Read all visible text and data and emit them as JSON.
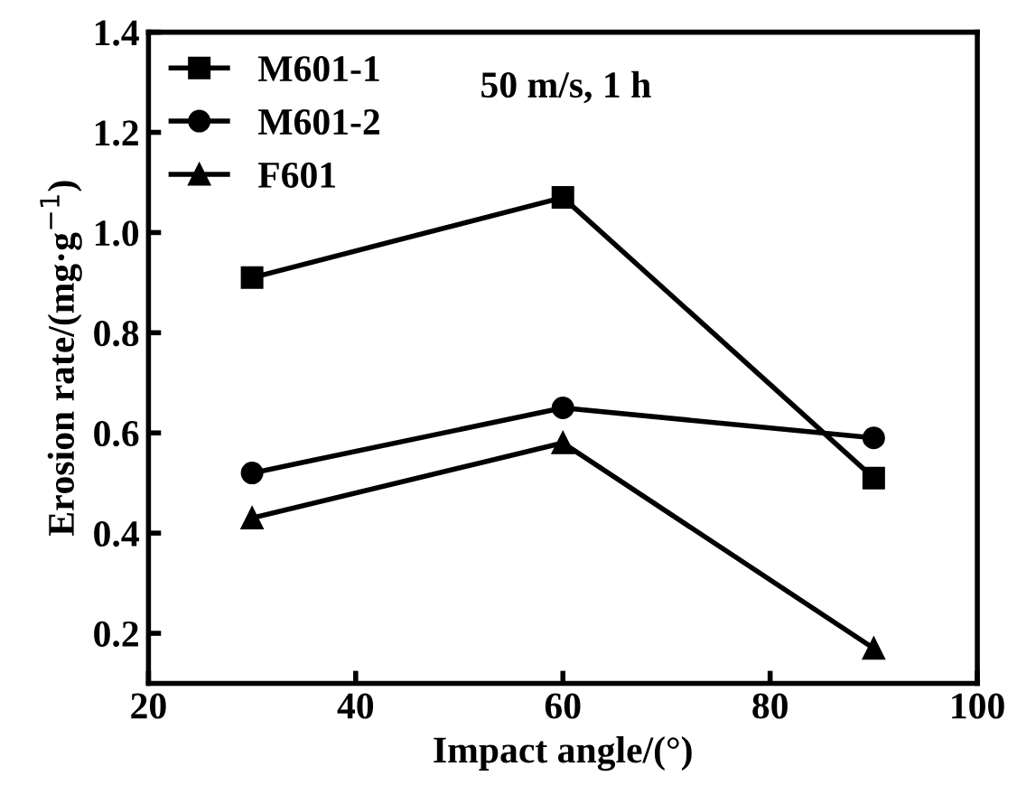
{
  "chart_data": {
    "type": "line",
    "xlabel": "Impact angle/(°)",
    "ylabel": "Erosion rate/(mg·g$^{−1}$)",
    "x": [
      30,
      60,
      90
    ],
    "series": [
      {
        "name": "M601-1",
        "color": "#000000",
        "marker": "square",
        "values": [
          0.91,
          1.07,
          0.51
        ]
      },
      {
        "name": "M601-2",
        "color": "#000000",
        "marker": "circle",
        "values": [
          0.52,
          0.65,
          0.59
        ]
      },
      {
        "name": "F601",
        "color": "#000000",
        "marker": "triangle",
        "values": [
          0.43,
          0.58,
          0.17
        ]
      }
    ],
    "annotations": [
      "50 m/s, 1 h"
    ],
    "xlim": [
      20,
      100
    ],
    "xticks": [
      20,
      40,
      60,
      80,
      100
    ],
    "ylim": [
      0.1,
      1.4
    ],
    "yticks": [
      0.2,
      0.4,
      0.6,
      0.8,
      {
        "value": 1.0,
        "label": "1.0"
      },
      1.2,
      1.4
    ],
    "legend": "top left",
    "grid": false,
    "line_style": "solid"
  }
}
